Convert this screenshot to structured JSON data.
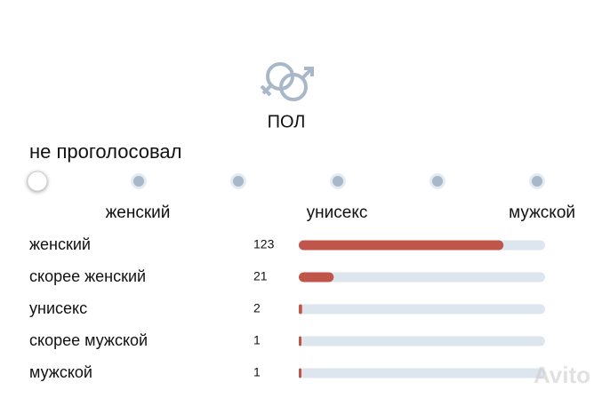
{
  "header": {
    "title": "ПОЛ",
    "status": "не проголосовал"
  },
  "scale": {
    "labels": [
      "женский",
      "унисекс",
      "мужской"
    ]
  },
  "results": {
    "rows": [
      {
        "label": "женский",
        "count": 123
      },
      {
        "label": "скорее женский",
        "count": 21
      },
      {
        "label": "унисекс",
        "count": 2
      },
      {
        "label": "скорее мужской",
        "count": 1
      },
      {
        "label": "мужской",
        "count": 1
      }
    ]
  },
  "watermark": "Avito"
}
